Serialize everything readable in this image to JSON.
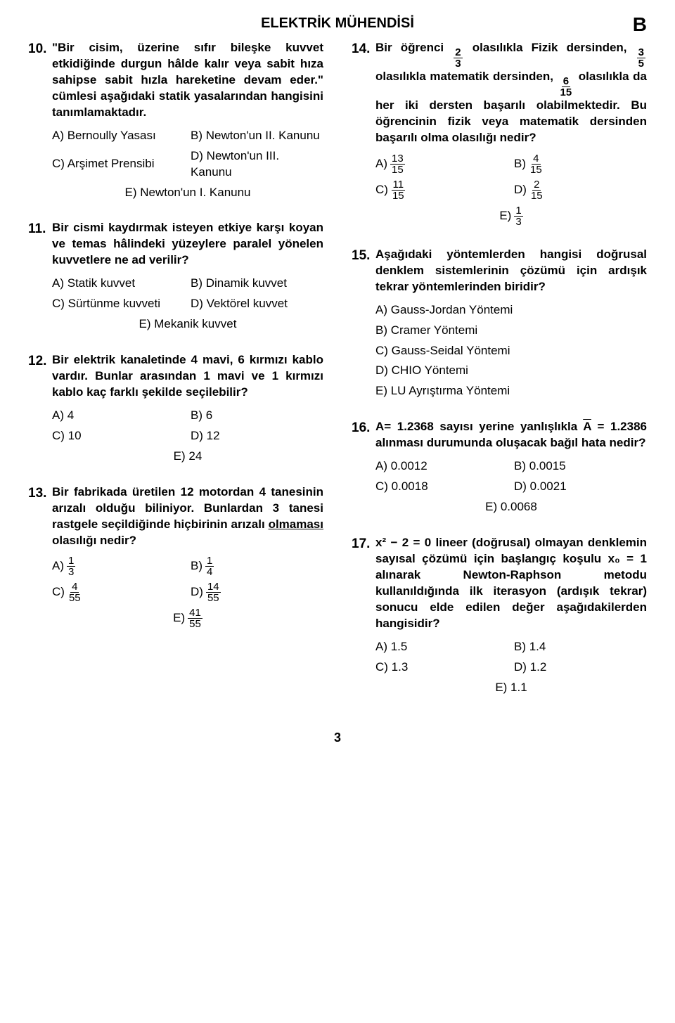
{
  "header": {
    "title": "ELEKTRİK MÜHENDİSİ",
    "booklet": "B",
    "page_number": "3"
  },
  "q10": {
    "num": "10.",
    "text": "\"Bir cisim, üzerine sıfır bileşke kuvvet etkidiğinde durgun hâlde kalır veya sabit hıza sahipse sabit hızla hareketine devam eder.\" cümlesi aşağıdaki statik yasalarından hangisini tanımlamaktadır.",
    "a": "A) Bernoully Yasası",
    "b": "B) Newton'un II. Kanunu",
    "c": "C) Arşimet Prensibi",
    "d": "D) Newton'un III. Kanunu",
    "e": "E) Newton'un I. Kanunu"
  },
  "q11": {
    "num": "11.",
    "text": "Bir cismi kaydırmak isteyen etkiye karşı koyan ve temas hâlindeki yüzeylere paralel yönelen kuvvetlere ne ad verilir?",
    "a": "A) Statik kuvvet",
    "b": "B) Dinamik kuvvet",
    "c": "C) Sürtünme kuvveti",
    "d": "D) Vektörel kuvvet",
    "e": "E) Mekanik kuvvet"
  },
  "q12": {
    "num": "12.",
    "text": "Bir elektrik kanaletinde 4 mavi, 6 kırmızı kablo vardır. Bunlar arasından 1 mavi ve 1 kırmızı kablo kaç farklı şekilde seçilebilir?",
    "a": "A) 4",
    "b": "B) 6",
    "c": "C) 10",
    "d": "D) 12",
    "e": "E) 24"
  },
  "q13": {
    "num": "13.",
    "text_pre": "Bir fabrikada üretilen 12 motordan 4 tanesinin arızalı olduğu biliniyor. Bunlardan 3 tanesi rastgele seçildiğinde hiçbirinin arızalı ",
    "underlined": "olmaması",
    "text_post": " olasılığı nedir?",
    "a": "A)",
    "an": "1",
    "ad": "3",
    "b": "B)",
    "bn": "1",
    "bd": "4",
    "c": "C)",
    "cn": "4",
    "cd": "55",
    "d": "D)",
    "dn": "14",
    "dd": "55",
    "e": "E)",
    "en": "41",
    "ed": "55"
  },
  "q14": {
    "num": "14.",
    "t1": "Bir öğrenci ",
    "f1n": "2",
    "f1d": "3",
    "t2": " olasılıkla Fizik dersinden, ",
    "f2n": "3",
    "f2d": "5",
    "t3": " olasılıkla matematik dersinden, ",
    "f3n": "6",
    "f3d": "15",
    "t4": " olasılıkla da her iki dersten başarılı olabilmektedir. Bu öğrencinin fizik veya matematik dersinden başarılı olma olasılığı nedir?",
    "a": "A)",
    "an": "13",
    "ad": "15",
    "b": "B)",
    "bn": "4",
    "bd": "15",
    "c": "C)",
    "cn": "11",
    "cd": "15",
    "d": "D)",
    "dn": "2",
    "dd": "15",
    "e": "E)",
    "en": "1",
    "ed": "3"
  },
  "q15": {
    "num": "15.",
    "text": "Aşağıdaki yöntemlerden hangisi doğrusal denklem sistemlerinin çözümü için ardışık tekrar yöntemlerinden biridir?",
    "a": "A) Gauss-Jordan Yöntemi",
    "b": "B) Cramer Yöntemi",
    "c": "C) Gauss-Seidal Yöntemi",
    "d": "D) CHIO Yöntemi",
    "e": "E) LU Ayrıştırma Yöntemi"
  },
  "q16": {
    "num": "16.",
    "t1": "A= 1.2368 sayısı yerine yanlışlıkla ",
    "abar": "A",
    "t2": " = 1.2386 alınması durumunda oluşacak bağıl hata nedir?",
    "a": "A) 0.0012",
    "b": "B) 0.0015",
    "c": "C) 0.0018",
    "d": "D) 0.0021",
    "e": "E) 0.0068"
  },
  "q17": {
    "num": "17.",
    "text": "x² − 2 = 0 lineer (doğrusal) olmayan denklemin sayısal çözümü için başlangıç koşulu x₀ = 1 alınarak Newton-Raphson metodu kullanıldığında ilk iterasyon (ardışık tekrar) sonucu elde edilen değer aşağıdakilerden hangisidir?",
    "a": "A) 1.5",
    "b": "B) 1.4",
    "c": "C) 1.3",
    "d": "D) 1.2",
    "e": "E) 1.1"
  }
}
